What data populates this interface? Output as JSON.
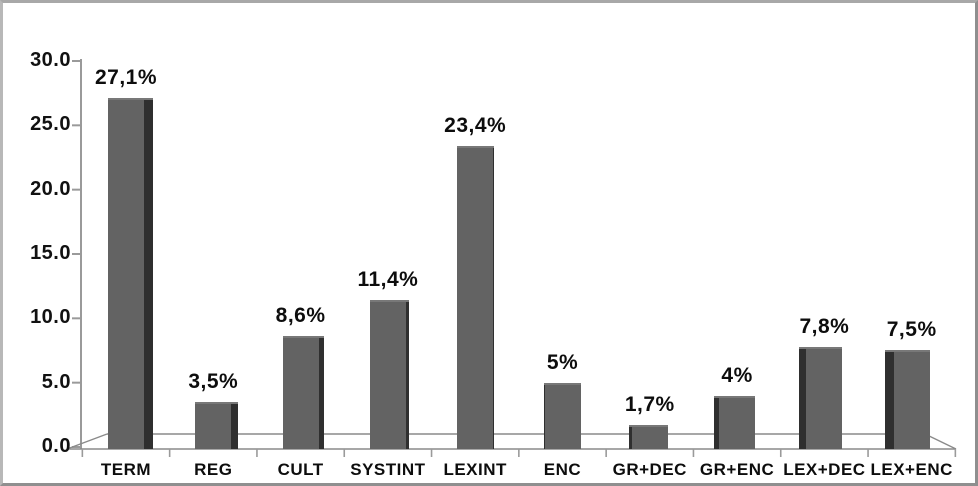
{
  "chart_data": {
    "type": "bar",
    "categories": [
      "TERM",
      "REG",
      "CULT",
      "SYSTINT",
      "LEXINT",
      "ENC",
      "GR+DEC",
      "GR+ENC",
      "LEX+DEC",
      "LEX+ENC"
    ],
    "values": [
      27.1,
      3.5,
      8.6,
      11.4,
      23.4,
      5,
      1.7,
      4,
      7.8,
      7.5
    ],
    "value_labels": [
      "27,1%",
      "3,5%",
      "8,6%",
      "11,4%",
      "23,4%",
      "5%",
      "1,7%",
      "4%",
      "7,8%",
      "7,5%"
    ],
    "title": "",
    "xlabel": "",
    "ylabel": "",
    "ylim": [
      0,
      30
    ],
    "y_ticks": [
      0,
      5,
      10,
      15,
      20,
      25,
      30
    ],
    "y_tick_labels": [
      "0.0",
      "5.0",
      "10.0",
      "15.0",
      "20.0",
      "25.0",
      "30.0"
    ],
    "grid": false,
    "legend": false,
    "style": "3d-perspective-grayscale"
  },
  "colors": {
    "bar_front": "#636363",
    "bar_side": "#2f2f2f",
    "bar_top_edge": "#787878",
    "axis_line": "#9a9a9a",
    "floor_line": "#8a8a8a",
    "text": "#0d0d0d",
    "frame_border": "#9e9e9e",
    "background": "#ffffff"
  }
}
